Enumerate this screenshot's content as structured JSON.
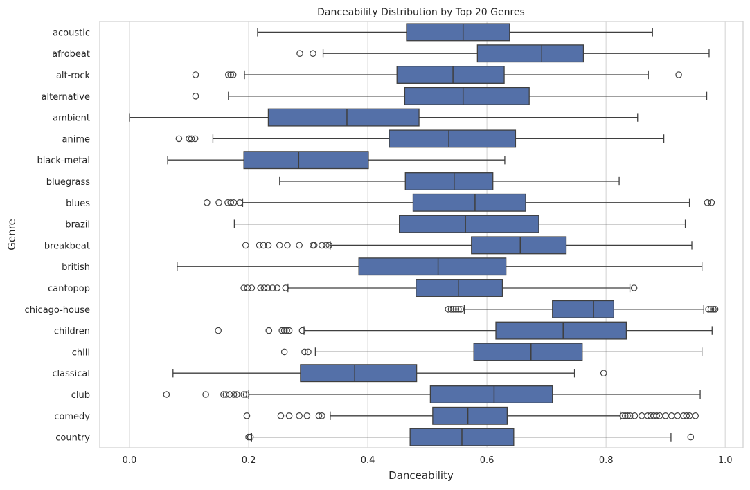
{
  "chart_data": {
    "type": "boxplot",
    "orientation": "horizontal",
    "title": "Danceability Distribution by Top 20 Genres",
    "xlabel": "Danceability",
    "ylabel": "Genre",
    "xlim": [
      -0.05,
      1.03
    ],
    "xticks": [
      0.0,
      0.2,
      0.4,
      0.6,
      0.8,
      1.0
    ],
    "xtick_labels": [
      "0.0",
      "0.2",
      "0.4",
      "0.6",
      "0.8",
      "1.0"
    ],
    "grid": "vertical",
    "box_color": "#5470a8",
    "categories": [
      "acoustic",
      "afrobeat",
      "alt-rock",
      "alternative",
      "ambient",
      "anime",
      "black-metal",
      "bluegrass",
      "blues",
      "brazil",
      "breakbeat",
      "british",
      "cantopop",
      "chicago-house",
      "children",
      "chill",
      "classical",
      "club",
      "comedy",
      "country"
    ],
    "boxes": [
      {
        "genre": "acoustic",
        "whislo": 0.215,
        "q1": 0.465,
        "med": 0.56,
        "q3": 0.638,
        "whishi": 0.878,
        "fliers": []
      },
      {
        "genre": "afrobeat",
        "whislo": 0.325,
        "q1": 0.584,
        "med": 0.692,
        "q3": 0.762,
        "whishi": 0.973,
        "fliers": [
          0.286,
          0.308
        ]
      },
      {
        "genre": "alt-rock",
        "whislo": 0.193,
        "q1": 0.449,
        "med": 0.543,
        "q3": 0.629,
        "whishi": 0.871,
        "fliers": [
          0.111,
          0.166,
          0.17,
          0.174,
          0.922
        ]
      },
      {
        "genre": "alternative",
        "whislo": 0.166,
        "q1": 0.462,
        "med": 0.56,
        "q3": 0.671,
        "whishi": 0.969,
        "fliers": [
          0.111
        ]
      },
      {
        "genre": "ambient",
        "whislo": 0.0,
        "q1": 0.233,
        "med": 0.365,
        "q3": 0.486,
        "whishi": 0.853,
        "fliers": []
      },
      {
        "genre": "anime",
        "whislo": 0.14,
        "q1": 0.436,
        "med": 0.536,
        "q3": 0.648,
        "whishi": 0.897,
        "fliers": [
          0.083,
          0.1,
          0.104,
          0.11
        ]
      },
      {
        "genre": "black-metal",
        "whislo": 0.064,
        "q1": 0.192,
        "med": 0.284,
        "q3": 0.401,
        "whishi": 0.63,
        "fliers": []
      },
      {
        "genre": "bluegrass",
        "whislo": 0.252,
        "q1": 0.463,
        "med": 0.545,
        "q3": 0.61,
        "whishi": 0.822,
        "fliers": []
      },
      {
        "genre": "blues",
        "whislo": 0.19,
        "q1": 0.476,
        "med": 0.58,
        "q3": 0.665,
        "whishi": 0.94,
        "fliers": [
          0.13,
          0.15,
          0.165,
          0.17,
          0.175,
          0.185,
          0.97,
          0.977
        ]
      },
      {
        "genre": "brazil",
        "whislo": 0.176,
        "q1": 0.453,
        "med": 0.564,
        "q3": 0.687,
        "whishi": 0.933,
        "fliers": []
      },
      {
        "genre": "breakbeat",
        "whislo": 0.337,
        "q1": 0.574,
        "med": 0.656,
        "q3": 0.733,
        "whishi": 0.944,
        "fliers": [
          0.195,
          0.218,
          0.225,
          0.233,
          0.252,
          0.265,
          0.285,
          0.308,
          0.31,
          0.323,
          0.33,
          0.335
        ]
      },
      {
        "genre": "british",
        "whislo": 0.08,
        "q1": 0.385,
        "med": 0.518,
        "q3": 0.632,
        "whishi": 0.961,
        "fliers": []
      },
      {
        "genre": "cantopop",
        "whislo": 0.266,
        "q1": 0.481,
        "med": 0.552,
        "q3": 0.626,
        "whishi": 0.84,
        "fliers": [
          0.192,
          0.198,
          0.205,
          0.22,
          0.226,
          0.232,
          0.24,
          0.248,
          0.262,
          0.847
        ]
      },
      {
        "genre": "chicago-house",
        "whislo": 0.562,
        "q1": 0.71,
        "med": 0.779,
        "q3": 0.813,
        "whishi": 0.964,
        "fliers": [
          0.535,
          0.54,
          0.544,
          0.548,
          0.552,
          0.556,
          0.972,
          0.976,
          0.98,
          0.983
        ]
      },
      {
        "genre": "children",
        "whislo": 0.293,
        "q1": 0.615,
        "med": 0.728,
        "q3": 0.834,
        "whishi": 0.978,
        "fliers": [
          0.149,
          0.234,
          0.256,
          0.26,
          0.264,
          0.268,
          0.29
        ]
      },
      {
        "genre": "chill",
        "whislo": 0.312,
        "q1": 0.578,
        "med": 0.674,
        "q3": 0.76,
        "whishi": 0.961,
        "fliers": [
          0.26,
          0.294,
          0.3
        ]
      },
      {
        "genre": "classical",
        "whislo": 0.073,
        "q1": 0.287,
        "med": 0.378,
        "q3": 0.482,
        "whishi": 0.747,
        "fliers": [
          0.796
        ]
      },
      {
        "genre": "club",
        "whislo": 0.2,
        "q1": 0.505,
        "med": 0.612,
        "q3": 0.71,
        "whishi": 0.958,
        "fliers": [
          0.062,
          0.128,
          0.158,
          0.162,
          0.168,
          0.175,
          0.18,
          0.192,
          0.196
        ]
      },
      {
        "genre": "comedy",
        "whislo": 0.337,
        "q1": 0.509,
        "med": 0.568,
        "q3": 0.634,
        "whishi": 0.824,
        "fliers": [
          0.197,
          0.254,
          0.268,
          0.285,
          0.298,
          0.318,
          0.323,
          0.828,
          0.832,
          0.836,
          0.84,
          0.848,
          0.86,
          0.87,
          0.875,
          0.88,
          0.885,
          0.89,
          0.9,
          0.91,
          0.92,
          0.93,
          0.935,
          0.94,
          0.95
        ]
      },
      {
        "genre": "country",
        "whislo": 0.205,
        "q1": 0.471,
        "med": 0.558,
        "q3": 0.645,
        "whishi": 0.909,
        "fliers": [
          0.2,
          0.203,
          0.942
        ]
      }
    ]
  }
}
